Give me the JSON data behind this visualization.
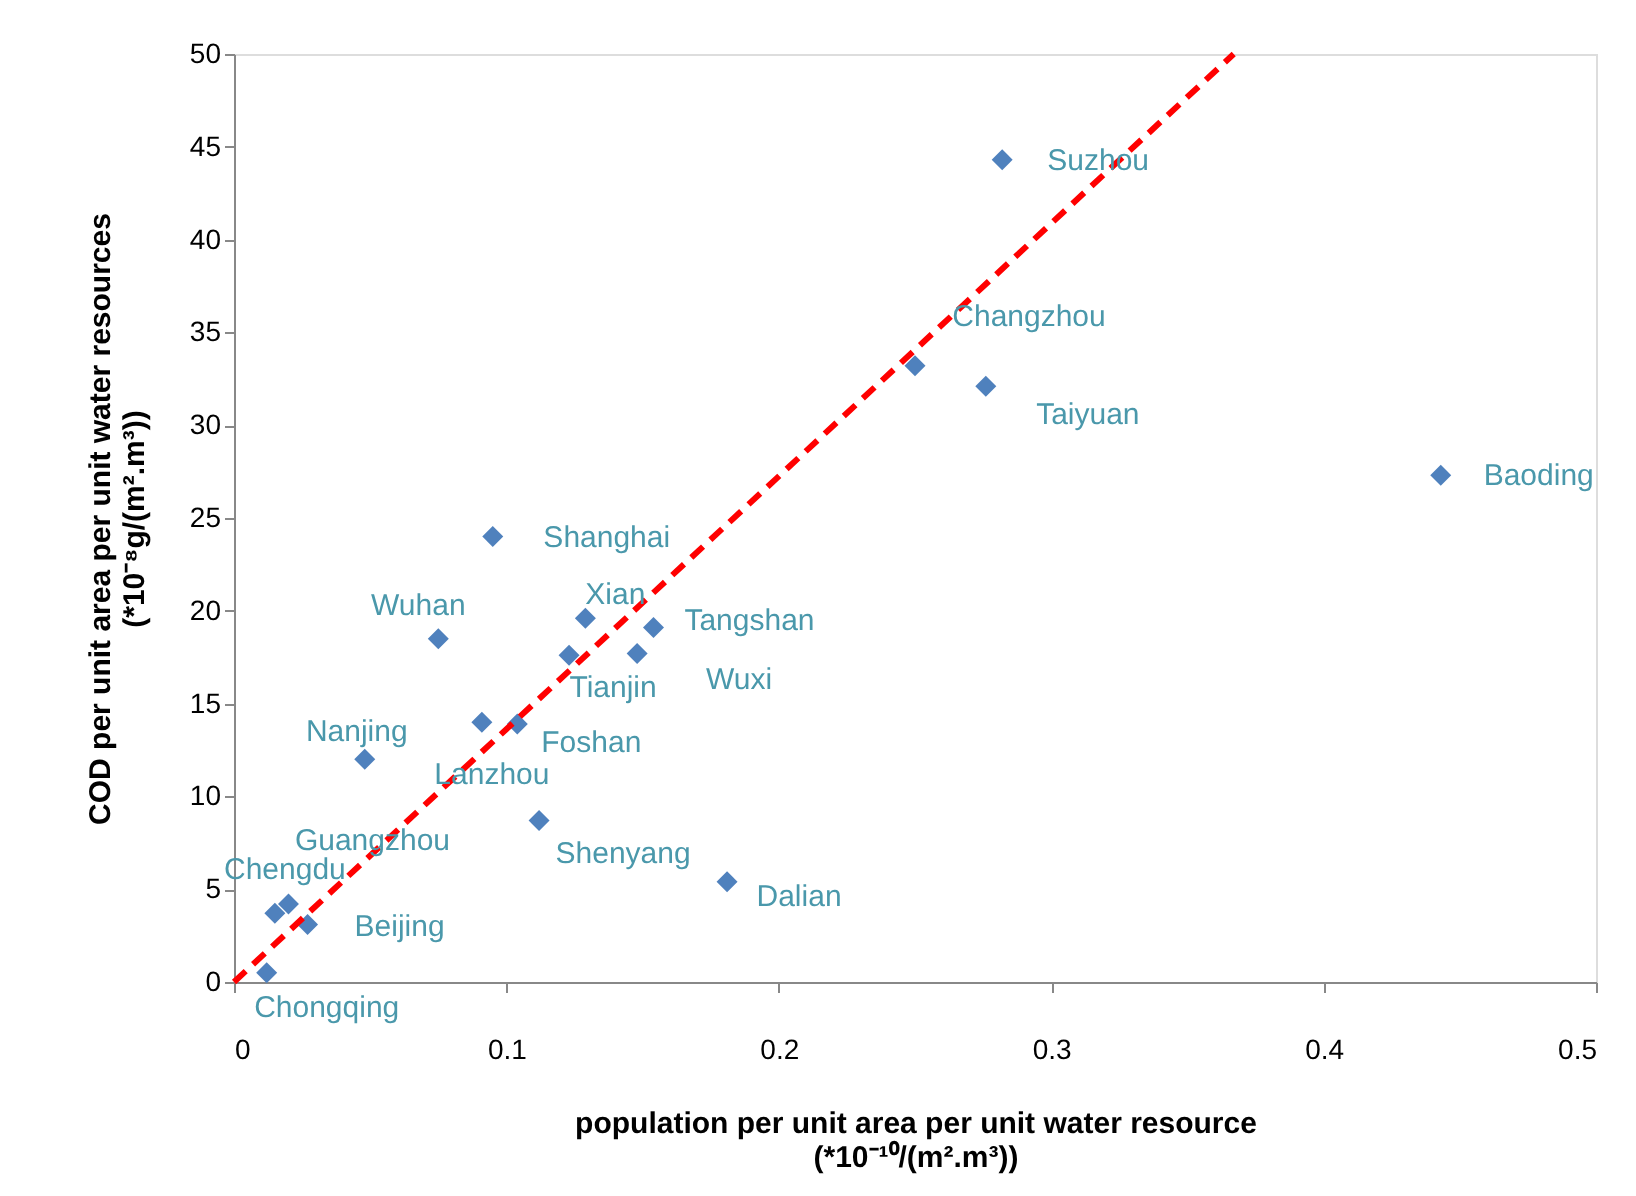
{
  "chart_data": {
    "type": "scatter",
    "xlabel": "population per unit area per unit water resource\n(*10⁻¹⁰/(m².m³))",
    "ylabel": "COD per unit area per unit water resources\n(*10⁻⁸g/(m².m³))",
    "xlim": [
      0,
      0.5
    ],
    "xticks": [
      0,
      0.1,
      0.2,
      0.3,
      0.4,
      0.5
    ],
    "ylim": [
      0,
      50
    ],
    "yticks": [
      0,
      5,
      10,
      15,
      20,
      25,
      30,
      35,
      40,
      45,
      50
    ],
    "grid": false,
    "marker": "diamond",
    "series": [
      {
        "color": "#4f81bd",
        "x": [
          0.282,
          0.25,
          0.276,
          0.443,
          0.095,
          0.075,
          0.129,
          0.154,
          0.123,
          0.148,
          0.091,
          0.104,
          0.048,
          0.112,
          0.181,
          0.02,
          0.015,
          0.027,
          0.012
        ],
        "values": [
          44.3,
          33.2,
          32.1,
          27.3,
          24.0,
          18.5,
          19.6,
          19.1,
          17.6,
          17.7,
          14.0,
          13.9,
          12.0,
          8.7,
          5.4,
          4.2,
          3.7,
          3.1,
          0.5
        ]
      },
      {
        "type": "line",
        "color": "#ff0000",
        "line_style": "dashed",
        "marker": "none",
        "x": [
          0,
          0.367
        ],
        "values": [
          0,
          50
        ]
      }
    ],
    "annotations": [
      {
        "text": "Suzhou",
        "x": 0.282,
        "y": 44.3
      },
      {
        "text": "Changzhou",
        "x": 0.25,
        "y": 33.2
      },
      {
        "text": "Taiyuan",
        "x": 0.276,
        "y": 32.1
      },
      {
        "text": "Baoding",
        "x": 0.443,
        "y": 27.3
      },
      {
        "text": "Shanghai",
        "x": 0.095,
        "y": 24.0
      },
      {
        "text": "Wuhan",
        "x": 0.075,
        "y": 18.5
      },
      {
        "text": "Xian",
        "x": 0.129,
        "y": 19.6
      },
      {
        "text": "Tangshan",
        "x": 0.154,
        "y": 19.1
      },
      {
        "text": "Tianjin",
        "x": 0.123,
        "y": 17.6
      },
      {
        "text": "Wuxi",
        "x": 0.148,
        "y": 17.7
      },
      {
        "text": "Lanzhou",
        "x": 0.091,
        "y": 14.0
      },
      {
        "text": "Foshan",
        "x": 0.104,
        "y": 13.9
      },
      {
        "text": "Nanjing",
        "x": 0.048,
        "y": 12.0
      },
      {
        "text": "Shenyang",
        "x": 0.112,
        "y": 8.7
      },
      {
        "text": "Dalian",
        "x": 0.181,
        "y": 5.4
      },
      {
        "text": "Guangzhou",
        "x": 0.02,
        "y": 4.2
      },
      {
        "text": "Chengdu",
        "x": 0.015,
        "y": 3.7
      },
      {
        "text": "Beijing",
        "x": 0.027,
        "y": 3.1
      },
      {
        "text": "Chongqing",
        "x": 0.012,
        "y": 0.5
      }
    ]
  }
}
